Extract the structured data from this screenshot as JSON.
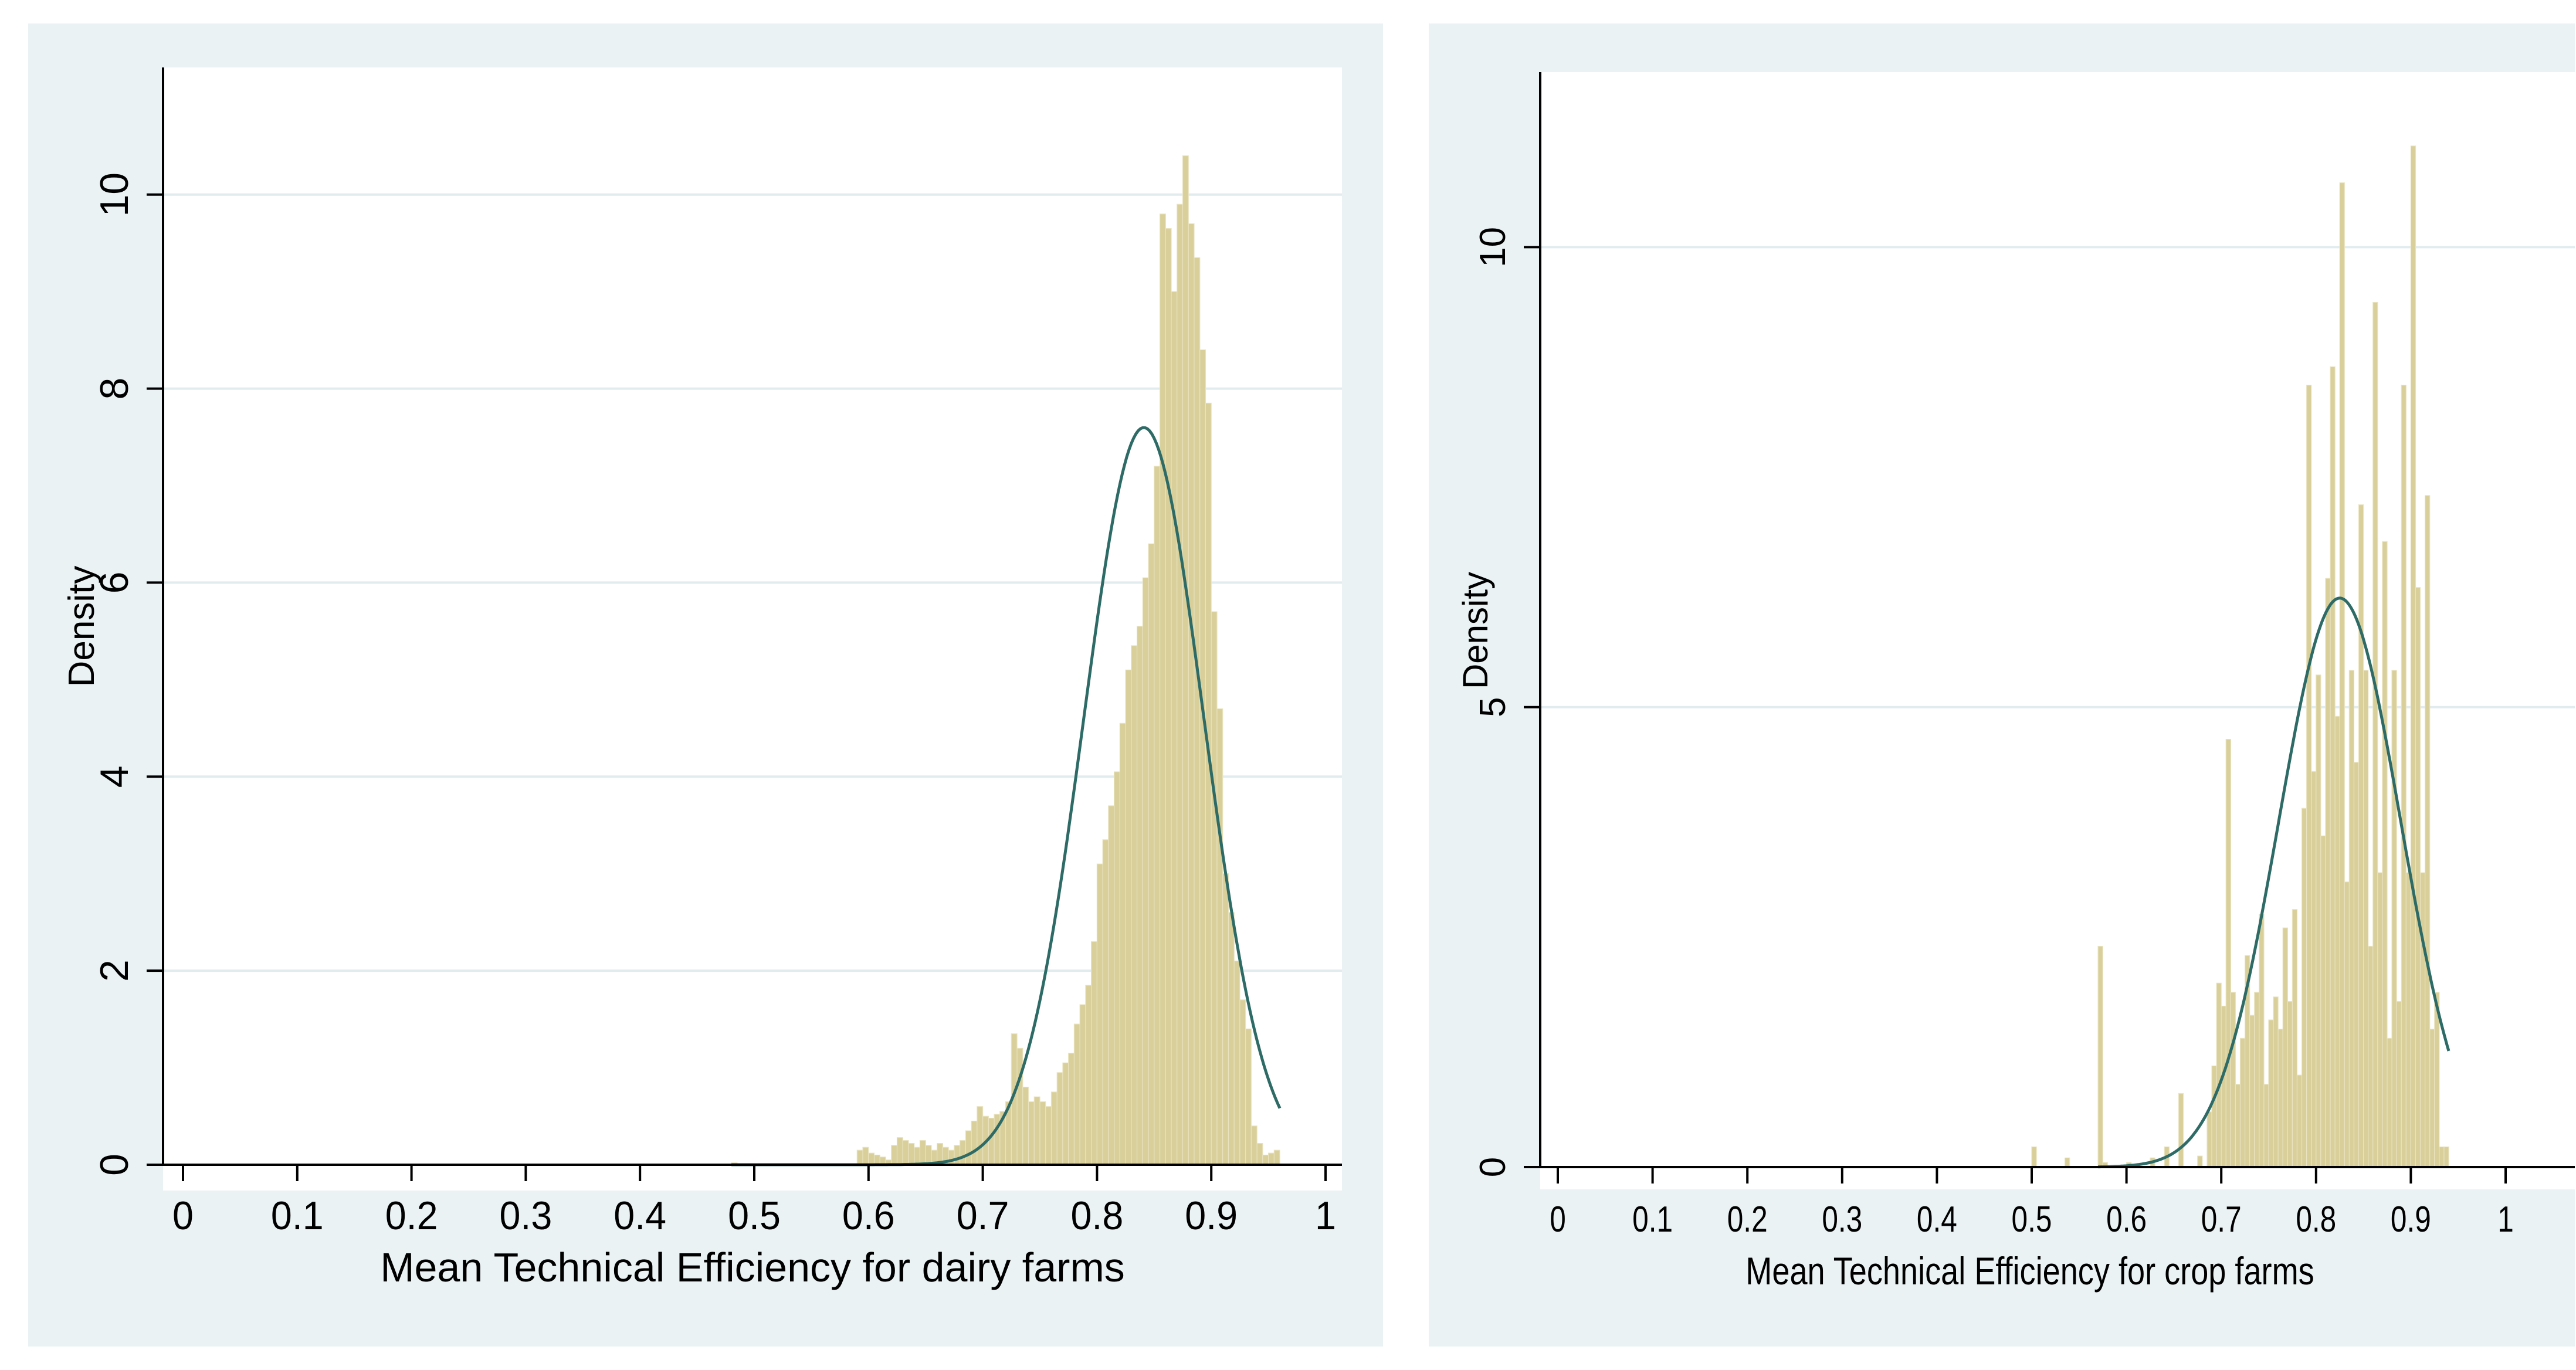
{
  "chart_data": [
    {
      "type": "bar",
      "subtype": "histogram-with-normal-curve",
      "xlabel": "Mean Technical Efficiency for dairy farms",
      "ylabel": "Density",
      "xlim": [
        0,
        1
      ],
      "ylim": [
        0,
        10.5
      ],
      "xticks": [
        "0",
        "0.1",
        "0.2",
        "0.3",
        "0.4",
        "0.5",
        "0.6",
        "0.7",
        "0.8",
        "0.9",
        "1"
      ],
      "yticks": [
        "0",
        "2",
        "4",
        "6",
        "8",
        "10"
      ],
      "grid": true,
      "bin_width": 0.005,
      "bins": [
        [
          0.48,
          0.02
        ],
        [
          0.59,
          0.15
        ],
        [
          0.595,
          0.18
        ],
        [
          0.6,
          0.12
        ],
        [
          0.605,
          0.1
        ],
        [
          0.61,
          0.08
        ],
        [
          0.615,
          0.05
        ],
        [
          0.62,
          0.2
        ],
        [
          0.625,
          0.28
        ],
        [
          0.63,
          0.25
        ],
        [
          0.635,
          0.22
        ],
        [
          0.64,
          0.18
        ],
        [
          0.645,
          0.25
        ],
        [
          0.65,
          0.2
        ],
        [
          0.655,
          0.15
        ],
        [
          0.66,
          0.22
        ],
        [
          0.665,
          0.18
        ],
        [
          0.67,
          0.15
        ],
        [
          0.675,
          0.2
        ],
        [
          0.68,
          0.25
        ],
        [
          0.685,
          0.35
        ],
        [
          0.69,
          0.45
        ],
        [
          0.695,
          0.6
        ],
        [
          0.7,
          0.5
        ],
        [
          0.705,
          0.48
        ],
        [
          0.71,
          0.52
        ],
        [
          0.715,
          0.55
        ],
        [
          0.72,
          0.65
        ],
        [
          0.725,
          1.35
        ],
        [
          0.73,
          1.2
        ],
        [
          0.735,
          0.8
        ],
        [
          0.74,
          0.65
        ],
        [
          0.745,
          0.7
        ],
        [
          0.75,
          0.65
        ],
        [
          0.755,
          0.6
        ],
        [
          0.76,
          0.75
        ],
        [
          0.765,
          0.95
        ],
        [
          0.77,
          1.05
        ],
        [
          0.775,
          1.15
        ],
        [
          0.78,
          1.45
        ],
        [
          0.785,
          1.65
        ],
        [
          0.79,
          1.85
        ],
        [
          0.795,
          2.3
        ],
        [
          0.8,
          3.1
        ],
        [
          0.805,
          3.35
        ],
        [
          0.81,
          3.7
        ],
        [
          0.815,
          4.05
        ],
        [
          0.82,
          4.55
        ],
        [
          0.825,
          5.1
        ],
        [
          0.83,
          5.35
        ],
        [
          0.835,
          5.55
        ],
        [
          0.84,
          6.05
        ],
        [
          0.845,
          6.4
        ],
        [
          0.85,
          7.2
        ],
        [
          0.855,
          9.8
        ],
        [
          0.86,
          9.65
        ],
        [
          0.865,
          9.0
        ],
        [
          0.87,
          9.9
        ],
        [
          0.875,
          10.4
        ],
        [
          0.88,
          9.7
        ],
        [
          0.885,
          9.35
        ],
        [
          0.89,
          8.4
        ],
        [
          0.895,
          7.85
        ],
        [
          0.9,
          5.7
        ],
        [
          0.905,
          4.7
        ],
        [
          0.91,
          3.0
        ],
        [
          0.915,
          2.6
        ],
        [
          0.92,
          2.1
        ],
        [
          0.925,
          1.7
        ],
        [
          0.93,
          1.4
        ],
        [
          0.935,
          0.4
        ],
        [
          0.94,
          0.22
        ],
        [
          0.945,
          0.1
        ],
        [
          0.95,
          0.12
        ],
        [
          0.955,
          0.15
        ]
      ],
      "normal_curve": {
        "mean": 0.841,
        "sd": 0.0525,
        "x_start": 0.48,
        "x_end": 0.96
      }
    },
    {
      "type": "bar",
      "subtype": "histogram-with-normal-curve",
      "xlabel": "Mean Technical Efficiency for crop farms",
      "ylabel": "Density",
      "xlim": [
        0,
        1
      ],
      "ylim": [
        0,
        10.5
      ],
      "xticks": [
        "0",
        "0.1",
        "0.2",
        "0.3",
        "0.4",
        "0.5",
        "0.6",
        "0.7",
        "0.8",
        "0.9",
        "1"
      ],
      "yticks": [
        "0",
        "5",
        "10"
      ],
      "grid": true,
      "bin_width": 0.005,
      "bins": [
        [
          0.5,
          0.22
        ],
        [
          0.535,
          0.1
        ],
        [
          0.57,
          2.4
        ],
        [
          0.575,
          0.05
        ],
        [
          0.6,
          0.05
        ],
        [
          0.625,
          0.1
        ],
        [
          0.64,
          0.22
        ],
        [
          0.655,
          0.8
        ],
        [
          0.675,
          0.12
        ],
        [
          0.685,
          0.6
        ],
        [
          0.69,
          1.1
        ],
        [
          0.695,
          2.0
        ],
        [
          0.7,
          1.75
        ],
        [
          0.705,
          4.65
        ],
        [
          0.71,
          1.9
        ],
        [
          0.715,
          0.9
        ],
        [
          0.72,
          1.4
        ],
        [
          0.725,
          2.3
        ],
        [
          0.73,
          1.65
        ],
        [
          0.735,
          1.9
        ],
        [
          0.74,
          2.75
        ],
        [
          0.745,
          0.9
        ],
        [
          0.75,
          1.6
        ],
        [
          0.755,
          1.85
        ],
        [
          0.76,
          1.5
        ],
        [
          0.765,
          2.6
        ],
        [
          0.77,
          1.8
        ],
        [
          0.775,
          2.8
        ],
        [
          0.78,
          1.0
        ],
        [
          0.785,
          3.9
        ],
        [
          0.79,
          8.5
        ],
        [
          0.795,
          4.3
        ],
        [
          0.8,
          5.35
        ],
        [
          0.805,
          3.6
        ],
        [
          0.81,
          6.4
        ],
        [
          0.815,
          8.7
        ],
        [
          0.82,
          4.9
        ],
        [
          0.825,
          10.7
        ],
        [
          0.83,
          3.1
        ],
        [
          0.835,
          5.4
        ],
        [
          0.84,
          4.4
        ],
        [
          0.845,
          7.2
        ],
        [
          0.85,
          5.4
        ],
        [
          0.855,
          2.4
        ],
        [
          0.86,
          9.4
        ],
        [
          0.865,
          3.2
        ],
        [
          0.87,
          6.8
        ],
        [
          0.875,
          1.4
        ],
        [
          0.88,
          5.4
        ],
        [
          0.885,
          1.8
        ],
        [
          0.89,
          8.5
        ],
        [
          0.895,
          3.2
        ],
        [
          0.9,
          11.1
        ],
        [
          0.905,
          6.3
        ],
        [
          0.91,
          3.2
        ],
        [
          0.915,
          7.3
        ],
        [
          0.92,
          1.5
        ],
        [
          0.925,
          1.9
        ],
        [
          0.93,
          0.22
        ],
        [
          0.935,
          0.22
        ]
      ],
      "normal_curve": {
        "mean": 0.825,
        "sd": 0.0645,
        "x_start": 0.57,
        "x_end": 0.94
      }
    }
  ]
}
